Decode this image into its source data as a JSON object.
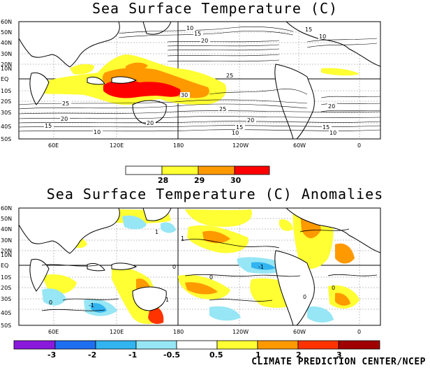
{
  "map1": {
    "title": "Sea Surface Temperature (C)",
    "lat_labels": [
      "60N",
      "50N",
      "40N",
      "30N",
      "20N",
      "10N",
      "EQ",
      "10S",
      "20S",
      "30S",
      "40S",
      "50S"
    ],
    "lon_labels": [
      "60E",
      "120E",
      "180",
      "120W",
      "60W",
      "0"
    ],
    "contour_labels": [
      "10",
      "15",
      "20",
      "25",
      "25",
      "20",
      "15",
      "10",
      "25",
      "20",
      "15",
      "10",
      "10",
      "15",
      "20",
      "30",
      "20",
      "15",
      "10"
    ]
  },
  "colorbar1": {
    "colors": [
      "#ffffff",
      "#ffff33",
      "#ff9900",
      "#ff0000"
    ],
    "labels": [
      "28",
      "29",
      "30"
    ]
  },
  "map2": {
    "title": "Sea Surface Temperature (C) Anomalies",
    "lat_labels": [
      "60N",
      "50N",
      "40N",
      "30N",
      "20N",
      "10N",
      "EQ",
      "10S",
      "20S",
      "30S",
      "40S",
      "50S"
    ],
    "lon_labels": [
      "60E",
      "120E",
      "180",
      "120W",
      "60W",
      "0"
    ],
    "contour_labels": [
      "1",
      "0",
      "-1",
      "1",
      "0",
      "0",
      "-1",
      "0",
      "1",
      "0"
    ]
  },
  "colorbar2": {
    "colors": [
      "#8a19dc",
      "#1e6ef0",
      "#32b4f0",
      "#96e6f5",
      "#ffffff",
      "#ffff33",
      "#ff9900",
      "#ff3300",
      "#a00000"
    ],
    "labels": [
      "-3",
      "-2",
      "-1",
      "-0.5",
      "0.5",
      "1",
      "2",
      "3"
    ]
  },
  "credit": "CLIMATE PREDICTION CENTER/NCEP"
}
